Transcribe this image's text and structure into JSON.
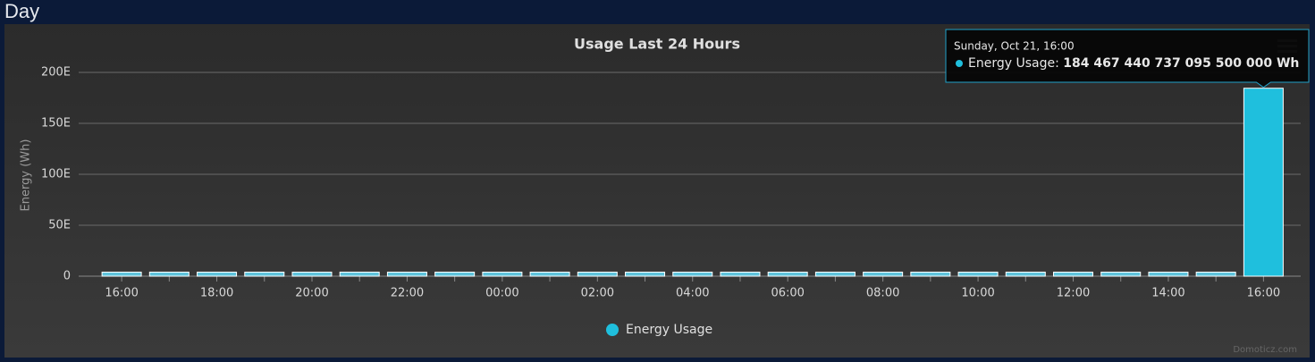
{
  "header": {
    "title": "Day"
  },
  "chart_data": {
    "type": "bar",
    "title": "Usage Last 24 Hours",
    "y_label": "Energy (Wh)",
    "categories": [
      "16:00",
      null,
      "18:00",
      null,
      "20:00",
      null,
      "22:00",
      null,
      "00:00",
      null,
      "02:00",
      null,
      "04:00",
      null,
      "06:00",
      null,
      "08:00",
      null,
      "10:00",
      null,
      "12:00",
      null,
      "14:00",
      null,
      "16:00"
    ],
    "series": [
      {
        "name": "Energy Usage",
        "color": "#1fbfdd",
        "values": [
          4000000000000000000,
          4000000000000000000,
          4000000000000000000,
          4000000000000000000,
          4000000000000000000,
          4000000000000000000,
          4000000000000000000,
          4000000000000000000,
          4000000000000000000,
          4000000000000000000,
          4000000000000000000,
          4000000000000000000,
          4000000000000000000,
          4000000000000000000,
          4000000000000000000,
          4000000000000000000,
          4000000000000000000,
          4000000000000000000,
          4000000000000000000,
          4000000000000000000,
          4000000000000000000,
          4000000000000000000,
          4000000000000000000,
          4000000000000000000,
          184467440737095500000
        ],
        "value_labels": [
          null,
          null,
          null,
          null,
          null,
          null,
          null,
          null,
          null,
          null,
          null,
          null,
          null,
          null,
          null,
          null,
          null,
          null,
          null,
          null,
          null,
          null,
          null,
          null,
          "184 467 440 737 095 500 000 Wh"
        ]
      }
    ],
    "ylim": [
      0,
      200000000000000000000
    ],
    "yticks": [
      {
        "value": 0,
        "label": "0"
      },
      {
        "value": 50000000000000000000,
        "label": "50E"
      },
      {
        "value": 100000000000000000000,
        "label": "100E"
      },
      {
        "value": 150000000000000000000,
        "label": "150E"
      },
      {
        "value": 200000000000000000000,
        "label": "200E"
      }
    ],
    "grid": true,
    "legend": "bottom",
    "tooltip": {
      "header": "Sunday, Oct 21, 16:00",
      "index": 24
    },
    "credits": "Domoticz.com"
  }
}
